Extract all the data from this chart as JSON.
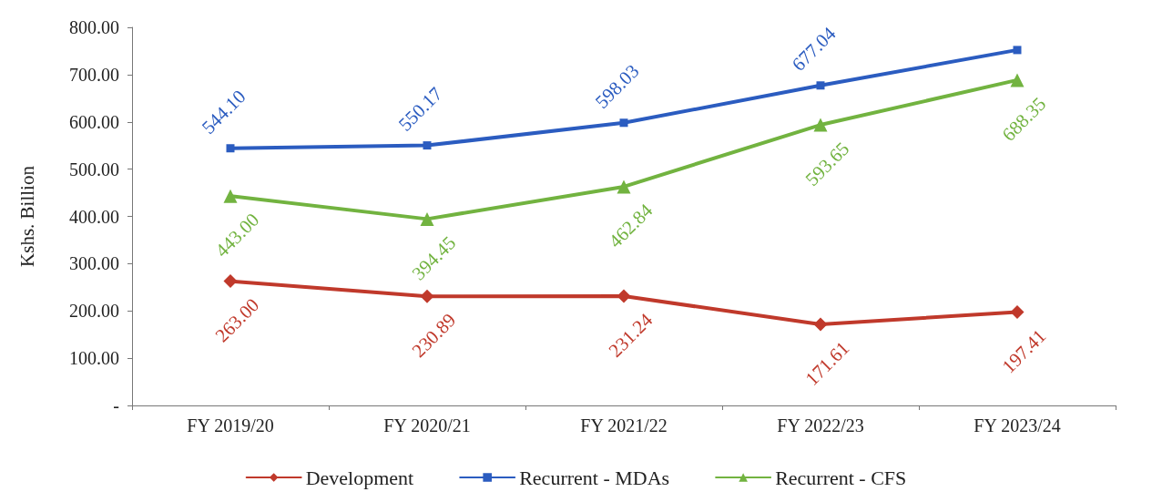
{
  "chart_data": {
    "type": "line",
    "ylabel": "Kshs. Billion",
    "categories": [
      "FY 2019/20",
      "FY 2020/21",
      "FY 2021/22",
      "FY 2022/23",
      "FY 2023/24"
    ],
    "series": [
      {
        "name": "Development",
        "color": "#c0392b",
        "marker": "diamond",
        "values": [
          263.0,
          230.89,
          231.24,
          171.61,
          197.41
        ],
        "value_labels": [
          "263.00",
          "230.89",
          "231.24",
          "171.61",
          "197.41"
        ]
      },
      {
        "name": "Recurrent - MDAs",
        "color": "#2b5cc0",
        "marker": "square",
        "values": [
          544.1,
          550.17,
          598.03,
          677.04,
          752
        ],
        "value_labels": [
          "544.10",
          "550.17",
          "598.03",
          "677.04",
          null
        ]
      },
      {
        "name": "Recurrent - CFS",
        "color": "#72b340",
        "marker": "triangle",
        "values": [
          443.0,
          394.45,
          462.84,
          593.65,
          688.35
        ],
        "value_labels": [
          "443.00",
          "394.45",
          "462.84",
          "593.65",
          "688.35"
        ]
      }
    ],
    "ylim": [
      0,
      800
    ],
    "yticks": [
      {
        "value": 0,
        "label": "-"
      },
      {
        "value": 100,
        "label": "100.00"
      },
      {
        "value": 200,
        "label": "200.00"
      },
      {
        "value": 300,
        "label": "300.00"
      },
      {
        "value": 400,
        "label": "400.00"
      },
      {
        "value": 500,
        "label": "500.00"
      },
      {
        "value": 600,
        "label": "600.00"
      },
      {
        "value": 700,
        "label": "700.00"
      },
      {
        "value": 800,
        "label": "800.00"
      }
    ],
    "grid": false,
    "legend": "bottom",
    "line_style": "solid"
  }
}
